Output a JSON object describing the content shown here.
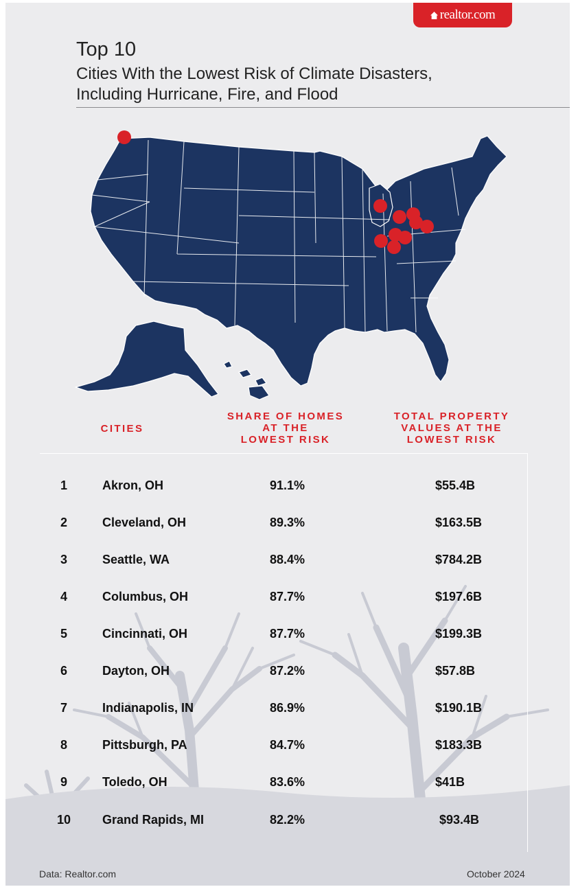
{
  "brand": {
    "logo_text": "realtor.com",
    "accent": "#d92228",
    "map_color": "#1c3461"
  },
  "header": {
    "title": "Top 10",
    "subtitle_line1": "Cities With the Lowest Risk of Climate Disasters,",
    "subtitle_line2": "Including Hurricane, Fire, and Flood"
  },
  "table": {
    "columns": {
      "cities": "CITIES",
      "share_l1": "SHARE OF HOMES",
      "share_l2": "AT THE",
      "share_l3": "LOWEST RISK",
      "values_l1": "TOTAL PROPERTY",
      "values_l2": "VALUES AT THE",
      "values_l3": "LOWEST RISK"
    },
    "rows": [
      {
        "rank": "1",
        "city": "Akron, OH",
        "share": "91.1%",
        "value": "$55.4B"
      },
      {
        "rank": "2",
        "city": "Cleveland, OH",
        "share": "89.3%",
        "value": "$163.5B"
      },
      {
        "rank": "3",
        "city": "Seattle, WA",
        "share": "88.4%",
        "value": "$784.2B"
      },
      {
        "rank": "4",
        "city": "Columbus, OH",
        "share": "87.7%",
        "value": "$197.6B"
      },
      {
        "rank": "5",
        "city": "Cincinnati, OH",
        "share": "87.7%",
        "value": "$199.3B"
      },
      {
        "rank": "6",
        "city": "Dayton, OH",
        "share": "87.2%",
        "value": "$57.8B"
      },
      {
        "rank": "7",
        "city": "Indianapolis, IN",
        "share": "86.9%",
        "value": "$190.1B"
      },
      {
        "rank": "8",
        "city": "Pittsburgh, PA",
        "share": "84.7%",
        "value": "$183.3B"
      },
      {
        "rank": "9",
        "city": "Toledo, OH",
        "share": "83.6%",
        "value": "$41B"
      },
      {
        "rank": "10",
        "city": "Grand Rapids, MI",
        "share": "82.2%",
        "value": "$93.4B"
      }
    ]
  },
  "footer": {
    "source": "Data: Realtor.com",
    "date": "October 2024"
  }
}
